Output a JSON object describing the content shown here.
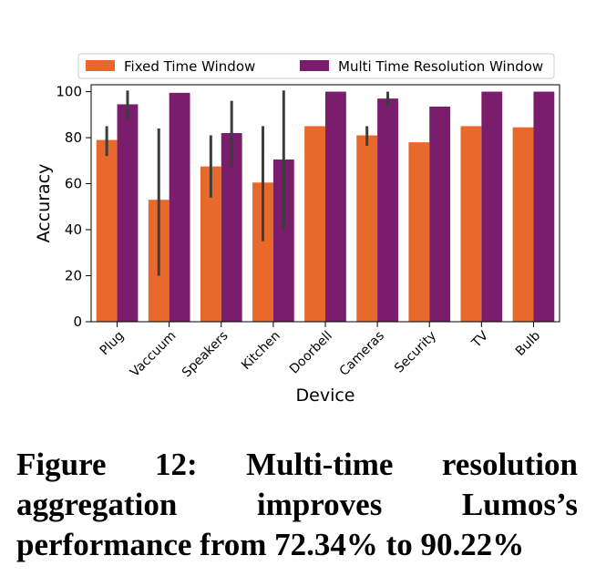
{
  "chart_data": {
    "type": "bar",
    "xlabel": "Device",
    "ylabel": "Accuracy",
    "ylim": [
      0,
      103
    ],
    "yticks": [
      0,
      20,
      40,
      60,
      80,
      100
    ],
    "legend_position": "top",
    "categories": [
      "Plug",
      "Vaccuum",
      "Speakers",
      "Kitchen",
      "Doorbell",
      "Cameras",
      "Security",
      "TV",
      "Bulb"
    ],
    "series": [
      {
        "name": "Fixed Time Window",
        "color": "#e9692c",
        "values": [
          79,
          53,
          67.5,
          60.5,
          85,
          81,
          78,
          85,
          84.5
        ],
        "error_low": [
          72,
          20,
          54,
          35,
          null,
          76.5,
          null,
          null,
          null
        ],
        "error_high": [
          85,
          84,
          81,
          85,
          null,
          85,
          null,
          null,
          null
        ]
      },
      {
        "name": "Multi Time Resolution Window",
        "color": "#7a1d6c",
        "values": [
          94.5,
          99.5,
          82,
          70.5,
          100,
          97,
          93.5,
          100,
          100
        ],
        "error_low": [
          88,
          null,
          67,
          40,
          null,
          93.5,
          null,
          null,
          null
        ],
        "error_high": [
          100.5,
          null,
          96,
          100.5,
          null,
          100,
          null,
          null,
          null
        ]
      }
    ]
  },
  "caption": "Figure 12: Multi-time resolution aggregation improves Lumos’s performance from 72.34% to 90.22%"
}
